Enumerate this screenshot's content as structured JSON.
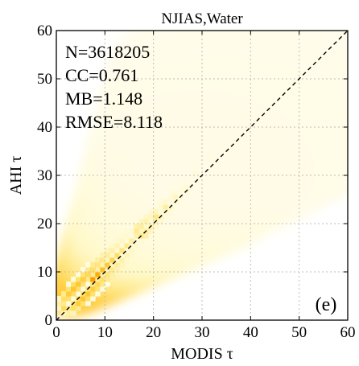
{
  "chart_data": {
    "type": "heatmap",
    "title": "NJIAS,Water",
    "xlabel": "MODIS τ",
    "ylabel": "AHI τ",
    "xlim": [
      0,
      60
    ],
    "ylim": [
      0,
      60
    ],
    "xticks": [
      0,
      10,
      20,
      30,
      40,
      50,
      60
    ],
    "yticks": [
      0,
      10,
      20,
      30,
      40,
      50,
      60
    ],
    "grid": true,
    "reference_line": {
      "style": "dashed",
      "color": "#000000",
      "points": [
        [
          0,
          0
        ],
        [
          60,
          60
        ]
      ]
    },
    "stats": [
      "N=3618205",
      "CC=0.761",
      "MB=1.148",
      "RMSE=8.118"
    ],
    "panel_label": "(e)",
    "colormap": [
      "#ffffff",
      "#fff9cc",
      "#ffe066",
      "#ffb000",
      "#ff6a00",
      "#e01000",
      "#7a0000",
      "#000000"
    ],
    "density_cells": [
      {
        "x": 2.5,
        "y": 3.5,
        "v": 0.55
      },
      {
        "x": 3.5,
        "y": 4.5,
        "v": 0.8
      },
      {
        "x": 4.5,
        "y": 5.5,
        "v": 0.95
      },
      {
        "x": 5.5,
        "y": 6.5,
        "v": 1.0
      },
      {
        "x": 6.5,
        "y": 7.5,
        "v": 0.98
      },
      {
        "x": 7.5,
        "y": 8.5,
        "v": 0.93
      },
      {
        "x": 8.5,
        "y": 9.5,
        "v": 0.85
      },
      {
        "x": 9.5,
        "y": 10.5,
        "v": 0.78
      },
      {
        "x": 10.5,
        "y": 11.5,
        "v": 0.7
      },
      {
        "x": 11.5,
        "y": 12.5,
        "v": 0.64
      },
      {
        "x": 12.5,
        "y": 13.5,
        "v": 0.58
      },
      {
        "x": 13.5,
        "y": 14.5,
        "v": 0.52
      },
      {
        "x": 14.5,
        "y": 15.5,
        "v": 0.47
      },
      {
        "x": 15.5,
        "y": 16.5,
        "v": 0.42
      },
      {
        "x": 16.5,
        "y": 17.5,
        "v": 0.38
      },
      {
        "x": 17.5,
        "y": 18.5,
        "v": 0.34
      },
      {
        "x": 18.5,
        "y": 19.5,
        "v": 0.3
      },
      {
        "x": 19.5,
        "y": 20.5,
        "v": 0.27
      },
      {
        "x": 20.5,
        "y": 21.5,
        "v": 0.24
      },
      {
        "x": 22.5,
        "y": 23.5,
        "v": 0.2
      },
      {
        "x": 24.5,
        "y": 25.5,
        "v": 0.16
      },
      {
        "x": 26.5,
        "y": 27.5,
        "v": 0.13
      },
      {
        "x": 28.5,
        "y": 30.5,
        "v": 0.11
      },
      {
        "x": 31.5,
        "y": 33.5,
        "v": 0.09
      },
      {
        "x": 34.5,
        "y": 36.5,
        "v": 0.07
      },
      {
        "x": 37.5,
        "y": 40.5,
        "v": 0.06
      },
      {
        "x": 41.5,
        "y": 44.5,
        "v": 0.05
      },
      {
        "x": 45.5,
        "y": 48.5,
        "v": 0.04
      }
    ]
  }
}
